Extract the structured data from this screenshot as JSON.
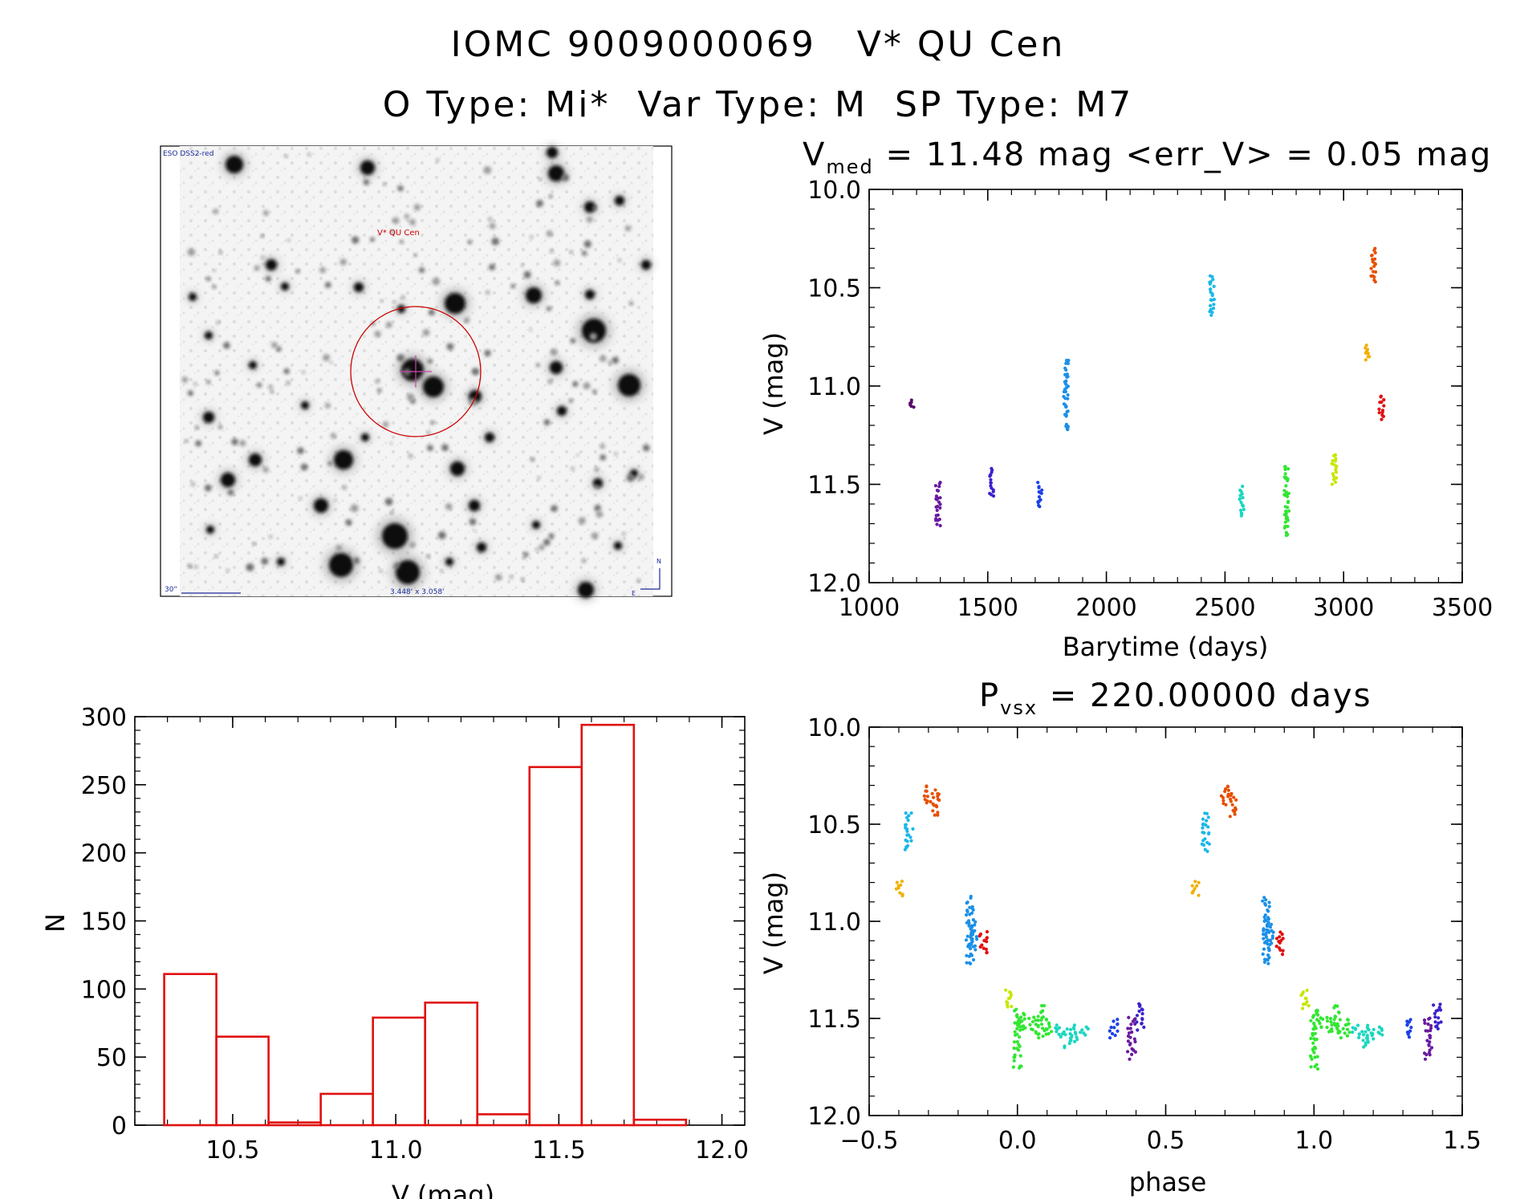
{
  "header": {
    "title": "IOMC 9009000069   V* QU Cen",
    "subtitle": "O Type: Mi*  Var Type: M  SP Type: M7"
  },
  "finder_image": {
    "survey_label": "ESO DSS2-red",
    "target_label": "V* QU Cen",
    "scale_label": "30\"",
    "fov_label": "3.448' x 3.058'",
    "north_label": "N",
    "east_label": "E",
    "target_marker_color": "#cc0000",
    "label_color": "#1a2a9a"
  },
  "chart_data": [
    {
      "id": "light_curve",
      "type": "scatter",
      "title_prefix": "V",
      "title_sub": "med",
      "title_suffix": " = 11.48 mag <err_V> = 0.05 mag",
      "xlabel": "Barytime (days)",
      "ylabel": "V (mag)",
      "xlim": [
        1000,
        3500
      ],
      "ylim": [
        12.0,
        10.0
      ],
      "xticks": [
        1000,
        1500,
        2000,
        2500,
        3000,
        3500
      ],
      "xtick_labels": [
        "1000",
        "1500",
        "2000",
        "2500",
        "3000",
        "3500"
      ],
      "yticks": [
        10.0,
        10.5,
        11.0,
        11.5,
        12.0
      ],
      "ytick_labels": [
        "10.0",
        "10.5",
        "11.0",
        "11.5",
        "12.0"
      ],
      "series": [
        {
          "name": "t1180",
          "color": "#5a0a6e",
          "t": 1180,
          "vmin": 11.07,
          "vmax": 11.11
        },
        {
          "name": "t1290",
          "color": "#6a1aa0",
          "t": 1290,
          "vmin": 11.49,
          "vmax": 11.71
        },
        {
          "name": "t1515",
          "color": "#3a22cc",
          "t": 1515,
          "vmin": 11.42,
          "vmax": 11.56
        },
        {
          "name": "t1720",
          "color": "#1d40e8",
          "t": 1720,
          "vmin": 11.49,
          "vmax": 11.62
        },
        {
          "name": "t1830",
          "color": "#1a90e8",
          "t": 1830,
          "vmin": 10.87,
          "vmax": 11.23
        },
        {
          "name": "t2445",
          "color": "#1ab8e8",
          "t": 2445,
          "vmin": 10.44,
          "vmax": 10.64
        },
        {
          "name": "t2570",
          "color": "#1ad6c0",
          "t": 2570,
          "vmin": 11.51,
          "vmax": 11.66
        },
        {
          "name": "t2760",
          "color": "#32e632",
          "t": 2760,
          "vmin": 11.41,
          "vmax": 11.76
        },
        {
          "name": "t2960",
          "color": "#c8e600",
          "t": 2960,
          "vmin": 11.35,
          "vmax": 11.5
        },
        {
          "name": "t3100",
          "color": "#f0b000",
          "t": 3100,
          "vmin": 10.79,
          "vmax": 10.87
        },
        {
          "name": "t3125",
          "color": "#e65000",
          "t": 3125,
          "vmin": 10.3,
          "vmax": 10.47
        },
        {
          "name": "t3160",
          "color": "#e01010",
          "t": 3160,
          "vmin": 11.05,
          "vmax": 11.17
        }
      ]
    },
    {
      "id": "histogram",
      "type": "bar",
      "xlabel": "V (mag)",
      "ylabel": "N",
      "xlim": [
        10.2,
        12.07
      ],
      "ylim": [
        0,
        300
      ],
      "xticks": [
        10.5,
        11.0,
        11.5,
        12.0
      ],
      "xtick_labels": [
        "10.5",
        "11.0",
        "11.5",
        "12.0"
      ],
      "yticks": [
        0,
        50,
        100,
        150,
        200,
        250,
        300
      ],
      "ytick_labels": [
        "0",
        "50",
        "100",
        "150",
        "200",
        "250",
        "300"
      ],
      "bin_edges": [
        10.29,
        10.45,
        10.61,
        10.77,
        10.93,
        11.09,
        11.25,
        11.41,
        11.57,
        11.73,
        11.89
      ],
      "values": [
        111,
        65,
        2,
        23,
        79,
        90,
        8,
        263,
        294,
        4
      ],
      "bar_color": "#e01010"
    },
    {
      "id": "phased_curve",
      "type": "scatter",
      "title_prefix": "P",
      "title_sub": "vsx",
      "title_suffix": " = 220.00000 days",
      "xlabel": "phase",
      "ylabel": "V (mag)",
      "xlim": [
        -0.5,
        1.5
      ],
      "ylim": [
        12.0,
        10.0
      ],
      "xticks": [
        -0.5,
        0.0,
        0.5,
        1.0,
        1.5
      ],
      "xtick_labels": [
        "−0.5",
        "0.0",
        "0.5",
        "1.0",
        "1.5"
      ],
      "yticks": [
        10.0,
        10.5,
        11.0,
        11.5,
        12.0
      ],
      "ytick_labels": [
        "10.0",
        "10.5",
        "11.0",
        "11.5",
        "12.0"
      ],
      "series": [
        {
          "name": "p1",
          "color": "#f0b000",
          "phase": -0.4,
          "vmin": 10.79,
          "vmax": 10.87
        },
        {
          "name": "p2",
          "color": "#1ab8e8",
          "phase": -0.365,
          "vmin": 10.44,
          "vmax": 10.64
        },
        {
          "name": "p3",
          "color": "#e65000",
          "phase": -0.3,
          "vmin": 10.3,
          "vmax": 10.4
        },
        {
          "name": "p4",
          "color": "#e65000",
          "phase": -0.275,
          "vmin": 10.32,
          "vmax": 10.46
        },
        {
          "name": "p5",
          "color": "#1a90e8",
          "phase": -0.16,
          "vmin": 10.87,
          "vmax": 11.23
        },
        {
          "name": "p6",
          "color": "#1a90e8",
          "phase": -0.15,
          "vmin": 11.0,
          "vmax": 11.15
        },
        {
          "name": "p7",
          "color": "#e01010",
          "phase": -0.115,
          "vmin": 11.05,
          "vmax": 11.17
        },
        {
          "name": "p8",
          "color": "#c8e600",
          "phase": -0.03,
          "vmin": 11.35,
          "vmax": 11.45
        },
        {
          "name": "p9",
          "color": "#32e632",
          "phase": 0.0,
          "vmin": 11.45,
          "vmax": 11.76
        },
        {
          "name": "p10",
          "color": "#32e632",
          "phase": 0.02,
          "vmin": 11.47,
          "vmax": 11.56
        },
        {
          "name": "p11",
          "color": "#32e632",
          "phase": 0.05,
          "vmin": 11.49,
          "vmax": 11.58
        },
        {
          "name": "p12",
          "color": "#32e632",
          "phase": 0.08,
          "vmin": 11.43,
          "vmax": 11.6
        },
        {
          "name": "p13",
          "color": "#32e632",
          "phase": 0.11,
          "vmin": 11.5,
          "vmax": 11.59
        },
        {
          "name": "p14",
          "color": "#1ad6c0",
          "phase": 0.14,
          "vmin": 11.53,
          "vmax": 11.6
        },
        {
          "name": "p15",
          "color": "#1ad6c0",
          "phase": 0.17,
          "vmin": 11.55,
          "vmax": 11.65
        },
        {
          "name": "p16",
          "color": "#1ad6c0",
          "phase": 0.19,
          "vmin": 11.53,
          "vmax": 11.62
        },
        {
          "name": "p17",
          "color": "#1ad6c0",
          "phase": 0.225,
          "vmin": 11.54,
          "vmax": 11.59
        },
        {
          "name": "p18",
          "color": "#1d40e8",
          "phase": 0.325,
          "vmin": 11.5,
          "vmax": 11.6
        },
        {
          "name": "p19",
          "color": "#6a1aa0",
          "phase": 0.385,
          "vmin": 11.49,
          "vmax": 11.71
        },
        {
          "name": "p20",
          "color": "#3a22cc",
          "phase": 0.415,
          "vmin": 11.42,
          "vmax": 11.56
        },
        {
          "name": "q1",
          "color": "#f0b000",
          "phase": 0.6,
          "vmin": 10.79,
          "vmax": 10.87
        },
        {
          "name": "q2",
          "color": "#1ab8e8",
          "phase": 0.635,
          "vmin": 10.44,
          "vmax": 10.64
        },
        {
          "name": "q3",
          "color": "#e65000",
          "phase": 0.7,
          "vmin": 10.3,
          "vmax": 10.4
        },
        {
          "name": "q4",
          "color": "#e65000",
          "phase": 0.725,
          "vmin": 10.32,
          "vmax": 10.46
        },
        {
          "name": "q5",
          "color": "#1a90e8",
          "phase": 0.84,
          "vmin": 10.87,
          "vmax": 11.23
        },
        {
          "name": "q6",
          "color": "#1a90e8",
          "phase": 0.85,
          "vmin": 11.0,
          "vmax": 11.15
        },
        {
          "name": "q7",
          "color": "#e01010",
          "phase": 0.885,
          "vmin": 11.05,
          "vmax": 11.17
        },
        {
          "name": "q8",
          "color": "#c8e600",
          "phase": 0.97,
          "vmin": 11.35,
          "vmax": 11.45
        },
        {
          "name": "q9",
          "color": "#32e632",
          "phase": 1.0,
          "vmin": 11.45,
          "vmax": 11.76
        },
        {
          "name": "q10",
          "color": "#32e632",
          "phase": 1.02,
          "vmin": 11.47,
          "vmax": 11.56
        },
        {
          "name": "q11",
          "color": "#32e632",
          "phase": 1.05,
          "vmin": 11.49,
          "vmax": 11.58
        },
        {
          "name": "q12",
          "color": "#32e632",
          "phase": 1.08,
          "vmin": 11.43,
          "vmax": 11.6
        },
        {
          "name": "q13",
          "color": "#32e632",
          "phase": 1.11,
          "vmin": 11.5,
          "vmax": 11.59
        },
        {
          "name": "q14",
          "color": "#1ad6c0",
          "phase": 1.14,
          "vmin": 11.53,
          "vmax": 11.6
        },
        {
          "name": "q15",
          "color": "#1ad6c0",
          "phase": 1.17,
          "vmin": 11.55,
          "vmax": 11.65
        },
        {
          "name": "q16",
          "color": "#1ad6c0",
          "phase": 1.19,
          "vmin": 11.53,
          "vmax": 11.62
        },
        {
          "name": "q17",
          "color": "#1ad6c0",
          "phase": 1.225,
          "vmin": 11.54,
          "vmax": 11.59
        },
        {
          "name": "q18",
          "color": "#1d40e8",
          "phase": 1.325,
          "vmin": 11.5,
          "vmax": 11.6
        },
        {
          "name": "q19",
          "color": "#6a1aa0",
          "phase": 1.385,
          "vmin": 11.49,
          "vmax": 11.71
        },
        {
          "name": "q20",
          "color": "#3a22cc",
          "phase": 1.415,
          "vmin": 11.42,
          "vmax": 11.56
        }
      ]
    }
  ]
}
